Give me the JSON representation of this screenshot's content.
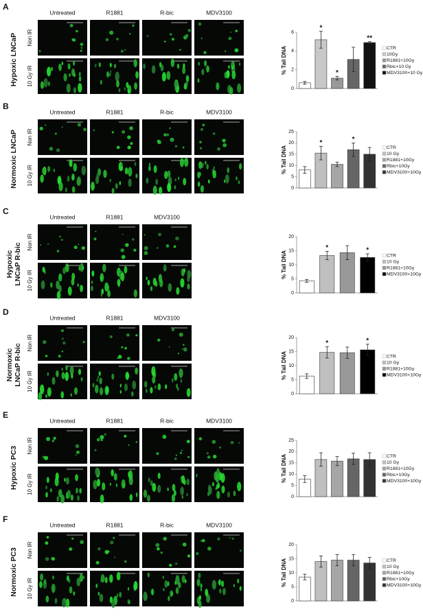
{
  "panels": [
    {
      "label": "A",
      "title": [
        "Hypoxic LNCaP"
      ],
      "columns": [
        "Untreated",
        "R1881",
        "R-bic",
        "MDV3100"
      ],
      "rows": [
        "Non IR",
        "10 Gy IR"
      ]
    },
    {
      "label": "B",
      "title": [
        "Normoxic LNCaP"
      ],
      "columns": [
        "Untreated",
        "R1881",
        "R-bic",
        "MDV3100"
      ],
      "rows": [
        "Non IR",
        "10 Gy IR"
      ]
    },
    {
      "label": "C",
      "title": [
        "Hypoxic",
        "LNCaP R-bic"
      ],
      "columns": [
        "Untreated",
        "R1881",
        "MDV3100"
      ],
      "rows": [
        "Non IR",
        "10 Gy IR"
      ]
    },
    {
      "label": "D",
      "title": [
        "Normoxic",
        "LNCaP R-bic"
      ],
      "columns": [
        "Untreated",
        "R1881",
        "MDV3100"
      ],
      "rows": [
        "Non IR",
        "10 Gy IR"
      ]
    },
    {
      "label": "E",
      "title": [
        "Hypoxic PC3"
      ],
      "columns": [
        "Untreated",
        "R1881",
        "R-bic",
        "MDV3100"
      ],
      "rows": [
        "Non IR",
        "10 Gy IR"
      ]
    },
    {
      "label": "F",
      "title": [
        "Normoxic PC3"
      ],
      "columns": [
        "Untreated",
        "R1881",
        "R-bic",
        "MDV3100"
      ],
      "rows": [
        "Non IR",
        "10 Gy IR"
      ]
    }
  ],
  "chart_data": [
    {
      "type": "bar",
      "ylabel": "% Tail DNA",
      "categories": [
        "CTR",
        "10Gy",
        "R1881+10Gy",
        "Rbic+10 Gy",
        "MDV3100+10 Gy"
      ],
      "values": [
        0.6,
        5.2,
        1.1,
        3.1,
        4.9
      ],
      "errors": [
        0.15,
        0.9,
        0.2,
        1.3,
        0.1
      ],
      "significance": [
        null,
        "*",
        "*",
        null,
        "**"
      ],
      "colors": [
        "#ffffff",
        "#c8c8c8",
        "#999999",
        "#666666",
        "#111111"
      ],
      "ylim": [
        0,
        6
      ],
      "yticks": [
        0,
        2,
        4,
        6
      ]
    },
    {
      "type": "bar",
      "ylabel": "% Tail DNA",
      "categories": [
        "CTR",
        "10 Gy",
        "R1881+10Gy",
        "Rbic+10Gy",
        "MDV3100+10Gy"
      ],
      "values": [
        8,
        15.5,
        10.5,
        17,
        15
      ],
      "errors": [
        1.5,
        3,
        1,
        3,
        3
      ],
      "significance": [
        null,
        "*",
        null,
        "*",
        null
      ],
      "colors": [
        "#ffffff",
        "#bfbfbf",
        "#a6a6a6",
        "#666666",
        "#333333"
      ],
      "ylim": [
        0,
        25
      ],
      "yticks": [
        0,
        5,
        10,
        15,
        20,
        25
      ]
    },
    {
      "type": "bar",
      "ylabel": "% Tail DNA",
      "categories": [
        "CTR",
        "10 Gy",
        "R1881+10Gy",
        "MDV3100+10Gy"
      ],
      "values": [
        4.3,
        13.3,
        14.3,
        12.6
      ],
      "errors": [
        0.5,
        1.5,
        2.5,
        1.3
      ],
      "significance": [
        null,
        "*",
        null,
        "*"
      ],
      "colors": [
        "#ffffff",
        "#bfbfbf",
        "#999999",
        "#000000"
      ],
      "ylim": [
        0,
        20
      ],
      "yticks": [
        0,
        5,
        10,
        15,
        20
      ]
    },
    {
      "type": "bar",
      "ylabel": "% Tail DNA",
      "categories": [
        "CTR",
        "10 Gy",
        "R1881+10Gy",
        "MDV3100+10Gy"
      ],
      "values": [
        6.3,
        14.7,
        14.6,
        15.6
      ],
      "errors": [
        0.8,
        2,
        2,
        2
      ],
      "significance": [
        null,
        "*",
        null,
        "*"
      ],
      "colors": [
        "#ffffff",
        "#bfbfbf",
        "#999999",
        "#000000"
      ],
      "ylim": [
        0,
        20
      ],
      "yticks": [
        0,
        5,
        10,
        15,
        20
      ]
    },
    {
      "type": "bar",
      "ylabel": "% Tail DNA",
      "categories": [
        "CTR",
        "10 Gy",
        "R1881+10Gy",
        "Rbic+10Gy",
        "MDV3100+10Gy"
      ],
      "values": [
        7.8,
        16.5,
        15.8,
        16.8,
        16.5
      ],
      "errors": [
        1.5,
        3,
        2,
        2.5,
        3
      ],
      "significance": [
        null,
        null,
        null,
        null,
        null
      ],
      "colors": [
        "#ffffff",
        "#bfbfbf",
        "#a6a6a6",
        "#666666",
        "#333333"
      ],
      "ylim": [
        0,
        25
      ],
      "yticks": [
        0,
        5,
        10,
        15,
        20,
        25
      ]
    },
    {
      "type": "bar",
      "ylabel": "% Tail DNA",
      "categories": [
        "CTR",
        "10 Gy",
        "R1881+10Gy",
        "Rbic+10Gy",
        "MDV3100+10Gy"
      ],
      "values": [
        8.5,
        14,
        14.5,
        14.5,
        13.5
      ],
      "errors": [
        1,
        2,
        2,
        2,
        2
      ],
      "significance": [
        null,
        null,
        null,
        null,
        null
      ],
      "colors": [
        "#ffffff",
        "#bfbfbf",
        "#a6a6a6",
        "#666666",
        "#333333"
      ],
      "ylim": [
        0,
        20
      ],
      "yticks": [
        0,
        5,
        10,
        15,
        20
      ]
    }
  ]
}
